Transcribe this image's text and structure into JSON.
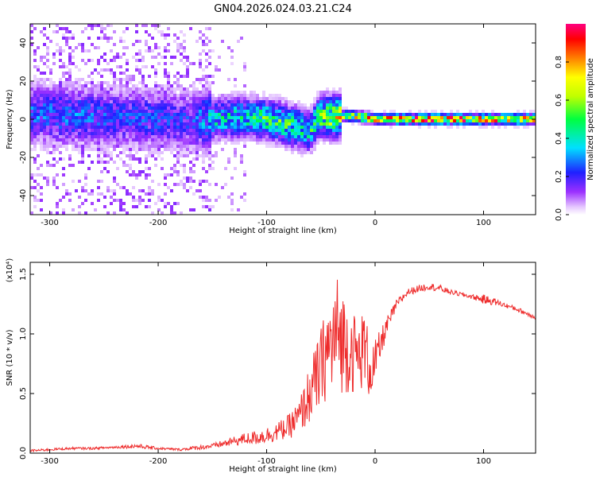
{
  "title": "GN04.2026.024.03.21.C24",
  "colors": {
    "snr_line": "#ee2b2b",
    "axis": "#000000"
  },
  "chart_data": [
    {
      "type": "heatmap",
      "title": "GN04.2026.024.03.21.C24",
      "xlabel": "Height of straight line (km)",
      "ylabel": "Frequency (Hz)",
      "xlim": [
        -318,
        148
      ],
      "ylim": [
        -50,
        50
      ],
      "xticks": [
        -300,
        -200,
        -100,
        0,
        100
      ],
      "yticks": [
        -40,
        -20,
        0,
        20,
        40
      ],
      "xtick_labels": [
        "-300",
        "-200",
        "-100",
        "0",
        "100"
      ],
      "ytick_labels": [
        "-40",
        "-20",
        "0",
        "20",
        "40"
      ],
      "colormap": "rainbow (white-purple-blue-cyan-green-yellow-red-magenta)",
      "colorbar": {
        "label": "Normalized spectral amplitude",
        "range": [
          0.0,
          1.0
        ],
        "ticks": [
          0.0,
          0.2,
          0.4,
          0.6,
          0.8
        ],
        "tick_labels": [
          "0.0",
          "0.2",
          "0.4",
          "0.6",
          "0.8"
        ]
      },
      "ridge": {
        "x": [
          -318,
          -280,
          -240,
          -200,
          -170,
          -150,
          -120,
          -100,
          -80,
          -60,
          -50,
          -40,
          -30,
          -10,
          0,
          50,
          100,
          148
        ],
        "frequency": [
          3,
          2,
          1,
          0,
          -1,
          0,
          1,
          0,
          -3,
          -6,
          2,
          1,
          2,
          1,
          0,
          0,
          0,
          0
        ],
        "amplitude": [
          0.25,
          0.25,
          0.22,
          0.22,
          0.2,
          0.35,
          0.4,
          0.45,
          0.45,
          0.4,
          0.55,
          0.6,
          0.65,
          0.7,
          0.75,
          0.85,
          0.8,
          0.8
        ]
      }
    },
    {
      "type": "line",
      "xlabel": "Height of straight line (km)",
      "ylabel": "SNR (10 * v/v)",
      "y_multiplier": "(x10⁴)",
      "xlim": [
        -318,
        148
      ],
      "ylim": [
        0,
        1.6
      ],
      "xticks": [
        -300,
        -200,
        -100,
        0,
        100
      ],
      "yticks": [
        0.0,
        0.5,
        1.0,
        1.5
      ],
      "xtick_labels": [
        "-300",
        "-200",
        "-100",
        "0",
        "100"
      ],
      "ytick_labels": [
        "0.0",
        "0.5",
        "1.0",
        "1.5"
      ],
      "series": [
        {
          "x": [
            -318,
            -300,
            -280,
            -260,
            -240,
            -220,
            -200,
            -180,
            -160,
            -150,
            -140,
            -130,
            -120,
            -110,
            -100,
            -90,
            -80,
            -70,
            -60,
            -50,
            -45,
            -40,
            -35,
            -30,
            -25,
            -20,
            -15,
            -10,
            -5,
            0,
            10,
            20,
            30,
            40,
            50,
            60,
            70,
            80,
            90,
            100,
            110,
            120,
            130,
            140,
            148
          ],
          "values": [
            0.02,
            0.03,
            0.04,
            0.04,
            0.05,
            0.06,
            0.04,
            0.03,
            0.05,
            0.06,
            0.08,
            0.1,
            0.12,
            0.13,
            0.15,
            0.18,
            0.22,
            0.3,
            0.5,
            0.7,
            0.85,
            0.9,
            1.0,
            0.95,
            0.9,
            0.85,
            0.8,
            0.9,
            0.7,
            0.75,
            1.05,
            1.25,
            1.35,
            1.38,
            1.4,
            1.38,
            1.35,
            1.33,
            1.31,
            1.29,
            1.27,
            1.24,
            1.21,
            1.17,
            1.14
          ],
          "noise_amplitude": [
            0.01,
            0.01,
            0.01,
            0.01,
            0.01,
            0.02,
            0.01,
            0.01,
            0.02,
            0.02,
            0.03,
            0.04,
            0.05,
            0.06,
            0.07,
            0.08,
            0.1,
            0.15,
            0.25,
            0.35,
            0.4,
            0.45,
            0.5,
            0.45,
            0.4,
            0.35,
            0.3,
            0.35,
            0.25,
            0.2,
            0.08,
            0.04,
            0.03,
            0.03,
            0.03,
            0.03,
            0.02,
            0.02,
            0.02,
            0.04,
            0.03,
            0.02,
            0.02,
            0.02,
            0.02
          ]
        }
      ]
    }
  ]
}
